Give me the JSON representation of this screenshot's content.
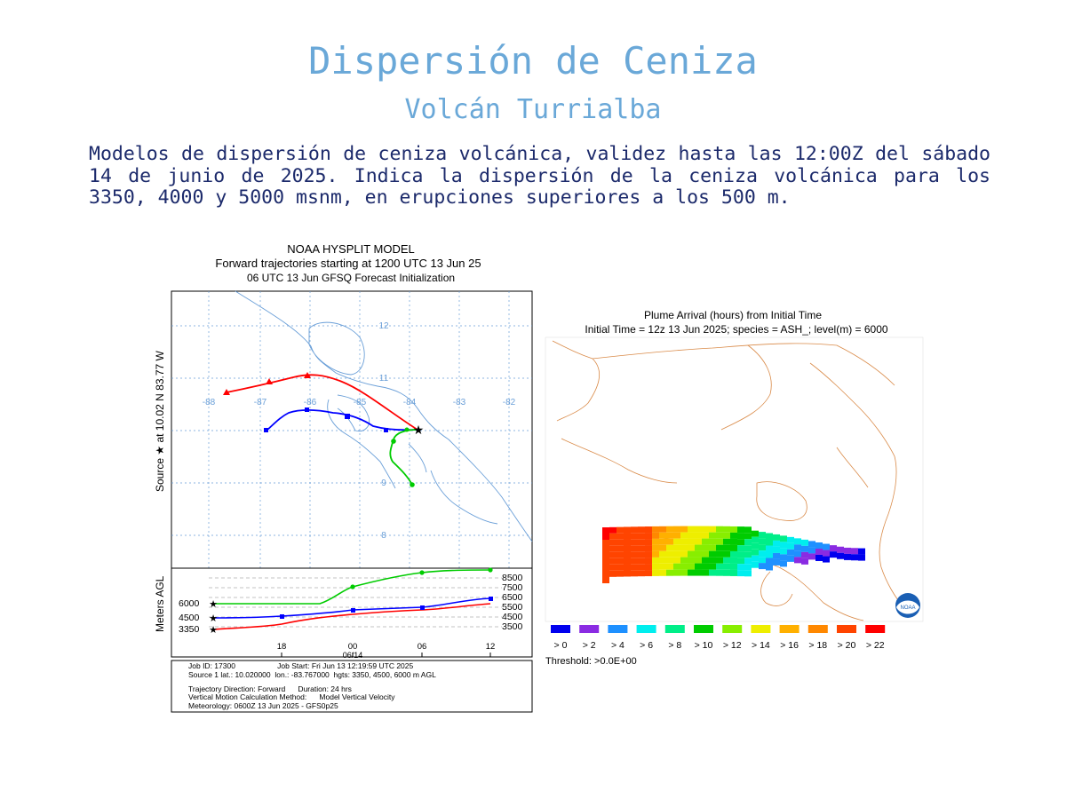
{
  "page": {
    "title": "Dispersión de Ceniza",
    "subtitle": "Volcán Turrialba",
    "description": "Modelos de dispersión de ceniza volcánica, validez hasta las 12:00Z del sábado 14 de junio de 2025. Indica la dispersión de la ceniza volcánica para los 3350, 4000 y 5000 msnm, en erupciones superiores a los 500 m."
  },
  "hysplit": {
    "header_line1": "NOAA HYSPLIT MODEL",
    "header_line2": "Forward trajectories starting at 1200 UTC 13 Jun 25",
    "header_line3": "06 UTC 13 Jun    GFSQ  Forecast Initialization",
    "y_axis_label": "Source ★  at   10.02 N   83.77 W",
    "lon_labels": [
      "-88",
      "-87",
      "-86",
      "-85",
      "-84",
      "-83",
      "-82"
    ],
    "lat_labels": [
      "12",
      "11",
      "9",
      "8"
    ],
    "lower_y_label": "Meters AGL",
    "left_heights": [
      "6000",
      "4500",
      "3350"
    ],
    "right_heights": [
      "8500",
      "7500",
      "6500",
      "5500",
      "4500",
      "3500"
    ],
    "time_ticks": [
      "18",
      "00",
      "06",
      "12"
    ],
    "date_label": "06/14",
    "info_line1": "Job ID: 17300                    Job Start: Fri Jun 13 12:19:59 UTC 2025",
    "info_line2": "Source 1 lat.: 10.020000  lon.: -83.767000  hgts: 3350, 4500, 6000 m AGL",
    "info_line3": "Trajectory Direction: Forward      Duration: 24 hrs",
    "info_line4": "Vertical Motion Calculation Method:      Model Vertical Velocity",
    "info_line5": "Meteorology: 0600Z 13 Jun 2025 - GFS0p25",
    "colors": {
      "high": "#ff0000",
      "mid": "#0000ff",
      "low": "#00dd00"
    }
  },
  "plume": {
    "header_line1": "Plume Arrival (hours) from Initial Time",
    "header_line2": "Initial Time = 12z 13 Jun 2025;  species = ASH_;  level(m) =  6000",
    "legend": [
      {
        "label": "> 0",
        "color": "#0000ee"
      },
      {
        "label": "> 2",
        "color": "#8a2be2"
      },
      {
        "label": "> 4",
        "color": "#1e90ff"
      },
      {
        "label": "> 6",
        "color": "#00eeee"
      },
      {
        "label": "> 8",
        "color": "#00ee88"
      },
      {
        "label": "> 10",
        "color": "#00cc00"
      },
      {
        "label": "> 12",
        "color": "#88ee00"
      },
      {
        "label": "> 14",
        "color": "#eeee00"
      },
      {
        "label": "> 16",
        "color": "#ffb000"
      },
      {
        "label": "> 18",
        "color": "#ff8800"
      },
      {
        "label": "> 20",
        "color": "#ff4400"
      },
      {
        "label": "> 22",
        "color": "#ff0000"
      }
    ],
    "threshold": "Threshold: >0.0E+00"
  }
}
